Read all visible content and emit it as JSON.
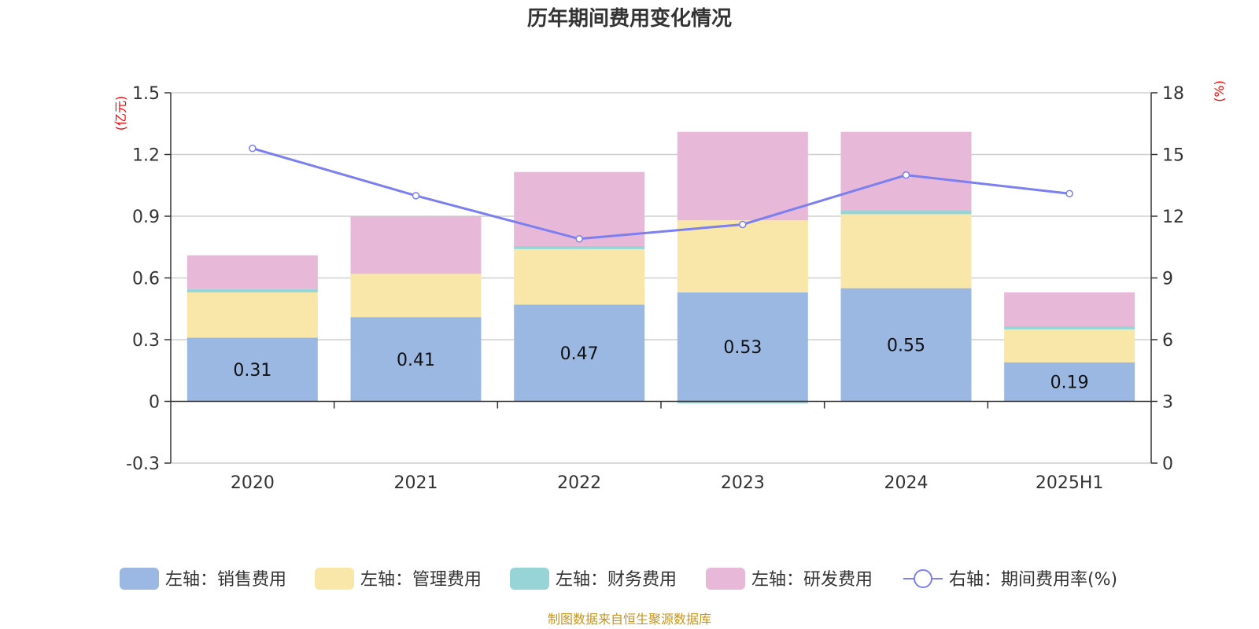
{
  "title": "历年期间费用变化情况",
  "source": "制图数据来自恒生聚源数据库",
  "chart_data": {
    "type": "bar",
    "stacked": true,
    "title": "历年期间费用变化情况",
    "categories": [
      "2020",
      "2021",
      "2022",
      "2023",
      "2024",
      "2025H1"
    ],
    "left_axis": {
      "unit": "(亿元)",
      "ylim": [
        -0.3,
        1.5
      ],
      "ticks": [
        "-0.3",
        "0",
        "0.3",
        "0.6",
        "0.9",
        "1.2",
        "1.5"
      ]
    },
    "right_axis": {
      "unit": "(%)",
      "ylim": [
        0,
        18
      ],
      "ticks": [
        "0",
        "3",
        "6",
        "9",
        "12",
        "15",
        "18"
      ]
    },
    "series": [
      {
        "name": "左轴：销售费用",
        "type": "bar",
        "axis": "left",
        "color": "#9bb8e2",
        "values": [
          0.31,
          0.41,
          0.47,
          0.53,
          0.55,
          0.19
        ],
        "labels": [
          "0.31",
          "0.41",
          "0.47",
          "0.53",
          "0.55",
          "0.19"
        ]
      },
      {
        "name": "左轴：管理费用",
        "type": "bar",
        "axis": "left",
        "color": "#f8e7a8",
        "values": [
          0.22,
          0.21,
          0.27,
          0.35,
          0.36,
          0.16
        ]
      },
      {
        "name": "左轴：财务费用",
        "type": "bar",
        "axis": "left",
        "color": "#96d4d6",
        "values": [
          0.015,
          0.0,
          0.015,
          -0.01,
          0.02,
          0.015
        ]
      },
      {
        "name": "左轴：研发费用",
        "type": "bar",
        "axis": "left",
        "color": "#e8b8d8",
        "values": [
          0.165,
          0.28,
          0.36,
          0.43,
          0.38,
          0.165
        ]
      },
      {
        "name": "右轴：期间费用率(%)",
        "type": "line",
        "axis": "right",
        "color": "#7b7ff0",
        "values": [
          15.3,
          13.0,
          10.9,
          11.6,
          14.0,
          13.1
        ]
      }
    ],
    "grid": true,
    "legend_position": "bottom"
  }
}
